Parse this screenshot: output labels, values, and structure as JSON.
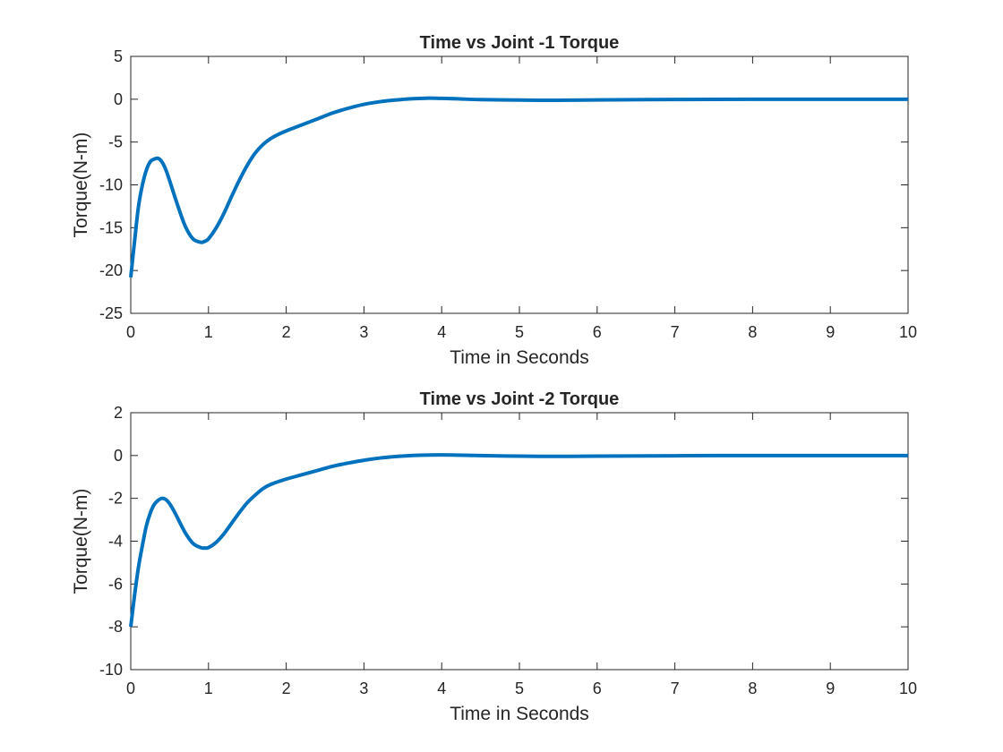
{
  "chart_data": [
    {
      "type": "line",
      "title": "Time vs Joint -1 Torque",
      "xlabel": "Time in Seconds",
      "ylabel": "Torque(N-m)",
      "xlim": [
        0,
        10
      ],
      "ylim": [
        -25,
        5
      ],
      "xticks": [
        0,
        1,
        2,
        3,
        4,
        5,
        6,
        7,
        8,
        9,
        10
      ],
      "yticks": [
        5,
        0,
        -5,
        -10,
        -15,
        -20,
        -25
      ],
      "grid": false,
      "line_color": "#0072BD",
      "series": [
        {
          "x": [
            0,
            0.05,
            0.1,
            0.15,
            0.2,
            0.25,
            0.3,
            0.35,
            0.4,
            0.45,
            0.5,
            0.6,
            0.7,
            0.8,
            0.9,
            0.95,
            1.0,
            1.1,
            1.2,
            1.3,
            1.4,
            1.5,
            1.6,
            1.7,
            1.8,
            1.9,
            2.0,
            2.2,
            2.4,
            2.6,
            2.8,
            3.0,
            3.2,
            3.4,
            3.6,
            3.8,
            4.0,
            4.2,
            4.5,
            5.0,
            5.5,
            6.0,
            7.0,
            8.0,
            9.0,
            10.0
          ],
          "values": [
            -20.8,
            -16.5,
            -12.5,
            -10.0,
            -8.3,
            -7.3,
            -7.0,
            -6.9,
            -7.3,
            -8.2,
            -9.5,
            -12.3,
            -14.8,
            -16.3,
            -16.7,
            -16.6,
            -16.3,
            -15.0,
            -13.3,
            -11.3,
            -9.4,
            -7.7,
            -6.3,
            -5.3,
            -4.6,
            -4.1,
            -3.7,
            -3.0,
            -2.3,
            -1.6,
            -1.05,
            -0.6,
            -0.3,
            -0.1,
            0.05,
            0.12,
            0.1,
            0.05,
            -0.05,
            -0.1,
            -0.12,
            -0.08,
            -0.03,
            0.0,
            0.0,
            0.0
          ]
        }
      ]
    },
    {
      "type": "line",
      "title": "Time vs Joint -2 Torque",
      "xlabel": "Time in Seconds",
      "ylabel": "Torque(N-m)",
      "xlim": [
        0,
        10
      ],
      "ylim": [
        -10,
        2
      ],
      "xticks": [
        0,
        1,
        2,
        3,
        4,
        5,
        6,
        7,
        8,
        9,
        10
      ],
      "yticks": [
        2,
        0,
        -2,
        -4,
        -6,
        -8,
        -10
      ],
      "grid": false,
      "line_color": "#0072BD",
      "series": [
        {
          "x": [
            0,
            0.05,
            0.1,
            0.15,
            0.2,
            0.25,
            0.3,
            0.35,
            0.4,
            0.45,
            0.5,
            0.55,
            0.6,
            0.7,
            0.8,
            0.9,
            0.95,
            1.0,
            1.1,
            1.2,
            1.3,
            1.4,
            1.5,
            1.6,
            1.7,
            1.8,
            2.0,
            2.2,
            2.4,
            2.6,
            2.8,
            3.0,
            3.2,
            3.4,
            3.6,
            3.8,
            4.0,
            4.2,
            4.5,
            5.0,
            5.5,
            6.0,
            7.0,
            8.0,
            9.0,
            10.0
          ],
          "values": [
            -8.0,
            -6.5,
            -5.2,
            -4.2,
            -3.3,
            -2.7,
            -2.3,
            -2.1,
            -2.0,
            -2.05,
            -2.25,
            -2.55,
            -2.9,
            -3.6,
            -4.1,
            -4.3,
            -4.32,
            -4.3,
            -4.05,
            -3.65,
            -3.15,
            -2.65,
            -2.2,
            -1.85,
            -1.55,
            -1.35,
            -1.1,
            -0.9,
            -0.7,
            -0.5,
            -0.35,
            -0.22,
            -0.12,
            -0.05,
            0.0,
            0.02,
            0.03,
            0.02,
            0.0,
            -0.03,
            -0.04,
            -0.03,
            -0.01,
            0.0,
            0.0,
            0.0
          ]
        }
      ]
    }
  ]
}
